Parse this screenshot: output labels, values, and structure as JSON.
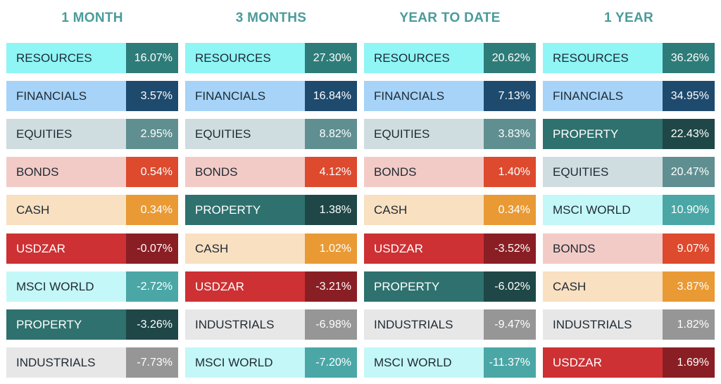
{
  "colors": {
    "title": "#4a9b9b",
    "categories": {
      "RESOURCES": {
        "label_bg": "#8ff5f5",
        "label_fg": "#1f2a33",
        "value_bg": "#2e7c79"
      },
      "FINANCIALS": {
        "label_bg": "#a6d3f7",
        "label_fg": "#1f2a33",
        "value_bg": "#1e4a6e"
      },
      "EQUITIES": {
        "label_bg": "#cfdde1",
        "label_fg": "#1f2a33",
        "value_bg": "#5f8f91"
      },
      "BONDS": {
        "label_bg": "#f2cbc7",
        "label_fg": "#1f2a33",
        "value_bg": "#dd4a2d"
      },
      "CASH": {
        "label_bg": "#f8e0c1",
        "label_fg": "#1f2a33",
        "value_bg": "#e99a35"
      },
      "USDZAR": {
        "label_bg": "#cd3134",
        "label_fg": "#ffffff",
        "value_bg": "#891f24"
      },
      "MSCI WORLD": {
        "label_bg": "#c4f7f7",
        "label_fg": "#1f2a33",
        "value_bg": "#4aa7a6"
      },
      "PROPERTY": {
        "label_bg": "#2e716e",
        "label_fg": "#ffffff",
        "value_bg": "#1f4747"
      },
      "INDUSTRIALS": {
        "label_bg": "#e7e7e7",
        "label_fg": "#1f2a33",
        "value_bg": "#969696"
      }
    }
  },
  "chart_data": {
    "type": "table",
    "columns": [
      {
        "title": "1 MONTH",
        "rows": [
          {
            "label": "RESOURCES",
            "value": "16.07%"
          },
          {
            "label": "FINANCIALS",
            "value": "3.57%"
          },
          {
            "label": "EQUITIES",
            "value": "2.95%"
          },
          {
            "label": "BONDS",
            "value": "0.54%"
          },
          {
            "label": "CASH",
            "value": "0.34%"
          },
          {
            "label": "USDZAR",
            "value": "-0.07%"
          },
          {
            "label": "MSCI WORLD",
            "value": "-2.72%"
          },
          {
            "label": "PROPERTY",
            "value": "-3.26%"
          },
          {
            "label": "INDUSTRIALS",
            "value": "-7.73%"
          }
        ]
      },
      {
        "title": "3 MONTHS",
        "rows": [
          {
            "label": "RESOURCES",
            "value": "27.30%"
          },
          {
            "label": "FINANCIALS",
            "value": "16.84%"
          },
          {
            "label": "EQUITIES",
            "value": "8.82%"
          },
          {
            "label": "BONDS",
            "value": "4.12%"
          },
          {
            "label": "PROPERTY",
            "value": "1.38%"
          },
          {
            "label": "CASH",
            "value": "1.02%"
          },
          {
            "label": "USDZAR",
            "value": "-3.21%"
          },
          {
            "label": "INDUSTRIALS",
            "value": "-6.98%"
          },
          {
            "label": "MSCI WORLD",
            "value": "-7.20%"
          }
        ]
      },
      {
        "title": "YEAR TO DATE",
        "rows": [
          {
            "label": "RESOURCES",
            "value": "20.62%"
          },
          {
            "label": "FINANCIALS",
            "value": "7.13%"
          },
          {
            "label": "EQUITIES",
            "value": "3.83%"
          },
          {
            "label": "BONDS",
            "value": "1.40%"
          },
          {
            "label": "CASH",
            "value": "0.34%"
          },
          {
            "label": "USDZAR",
            "value": "-3.52%"
          },
          {
            "label": "PROPERTY",
            "value": "-6.02%"
          },
          {
            "label": "INDUSTRIALS",
            "value": "-9.47%"
          },
          {
            "label": "MSCI WORLD",
            "value": "-11.37%"
          }
        ]
      },
      {
        "title": "1 YEAR",
        "rows": [
          {
            "label": "RESOURCES",
            "value": "36.26%"
          },
          {
            "label": "FINANCIALS",
            "value": "34.95%"
          },
          {
            "label": "PROPERTY",
            "value": "22.43%"
          },
          {
            "label": "EQUITIES",
            "value": "20.47%"
          },
          {
            "label": "MSCI WORLD",
            "value": "10.90%"
          },
          {
            "label": "BONDS",
            "value": "9.07%"
          },
          {
            "label": "CASH",
            "value": "3.87%"
          },
          {
            "label": "INDUSTRIALS",
            "value": "1.82%"
          },
          {
            "label": "USDZAR",
            "value": "1.69%"
          }
        ]
      }
    ]
  }
}
